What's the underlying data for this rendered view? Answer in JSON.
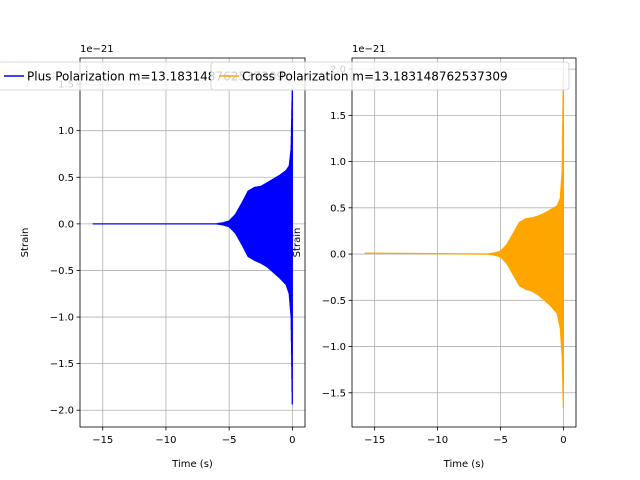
{
  "figure": {
    "background": "#ffffff"
  },
  "chart_data": [
    {
      "type": "line",
      "title": "",
      "xlabel": "Time (s)",
      "ylabel": "Strain",
      "offset_text": "1e−21",
      "xlim": [
        -16.8,
        1.0
      ],
      "ylim": [
        -2.18,
        1.78
      ],
      "x_ticks": [
        -15,
        -10,
        -5,
        0
      ],
      "x_tick_labels": [
        "−15",
        "−10",
        "−5",
        "0"
      ],
      "y_ticks": [
        -2.0,
        -1.5,
        -1.0,
        -0.5,
        0.0,
        0.5,
        1.0,
        1.5
      ],
      "y_tick_labels": [
        "−2.0",
        "−1.5",
        "−1.0",
        "−0.5",
        "0.0",
        "0.5",
        "1.0",
        "1.5"
      ],
      "grid": true,
      "legend_placement": "upper-right",
      "series": [
        {
          "name": "Plus Polarization m=13.183148762537309",
          "color": "#0000ff",
          "envelope": {
            "t": [
              -15.8,
              -6.0,
              -5.5,
              -5.0,
              -4.5,
              -4.0,
              -3.5,
              -3.0,
              -2.5,
              -2.0,
              -1.5,
              -1.0,
              -0.5,
              -0.25,
              -0.1,
              0.0
            ],
            "upper": [
              0.0,
              0.0,
              0.01,
              0.03,
              0.1,
              0.22,
              0.35,
              0.39,
              0.4,
              0.44,
              0.48,
              0.52,
              0.57,
              0.62,
              0.8,
              1.5
            ],
            "lower": [
              0.0,
              0.0,
              -0.01,
              -0.03,
              -0.1,
              -0.22,
              -0.35,
              -0.39,
              -0.42,
              -0.46,
              -0.52,
              -0.58,
              -0.65,
              -0.75,
              -1.0,
              -2.0
            ]
          }
        }
      ]
    },
    {
      "type": "line",
      "title": "",
      "xlabel": "Time (s)",
      "ylabel": "Strain",
      "offset_text": "1e−21",
      "xlim": [
        -16.8,
        1.0
      ],
      "ylim": [
        -1.87,
        2.12
      ],
      "x_ticks": [
        -15,
        -10,
        -5,
        0
      ],
      "x_tick_labels": [
        "−15",
        "−10",
        "−5",
        "0"
      ],
      "y_ticks": [
        -1.5,
        -1.0,
        -0.5,
        0.0,
        0.5,
        1.0,
        1.5,
        2.0
      ],
      "y_tick_labels": [
        "−1.5",
        "−1.0",
        "−0.5",
        "0.0",
        "0.5",
        "1.0",
        "1.5",
        "2.0"
      ],
      "grid": true,
      "legend_placement": "upper-right",
      "series": [
        {
          "name": "Cross Polarization m=13.183148762537309",
          "color": "#ffa500",
          "envelope": {
            "t": [
              -15.8,
              -6.0,
              -5.5,
              -5.0,
              -4.5,
              -4.0,
              -3.5,
              -3.0,
              -2.5,
              -2.0,
              -1.5,
              -1.0,
              -0.5,
              -0.25,
              -0.1,
              0.0
            ],
            "upper": [
              0.01,
              0.0,
              0.01,
              0.03,
              0.1,
              0.22,
              0.34,
              0.38,
              0.39,
              0.41,
              0.44,
              0.48,
              0.52,
              0.6,
              0.9,
              2.0
            ],
            "lower": [
              0.01,
              0.0,
              -0.01,
              -0.03,
              -0.1,
              -0.22,
              -0.34,
              -0.38,
              -0.4,
              -0.44,
              -0.5,
              -0.56,
              -0.64,
              -0.8,
              -1.1,
              -1.7
            ]
          }
        }
      ]
    }
  ]
}
